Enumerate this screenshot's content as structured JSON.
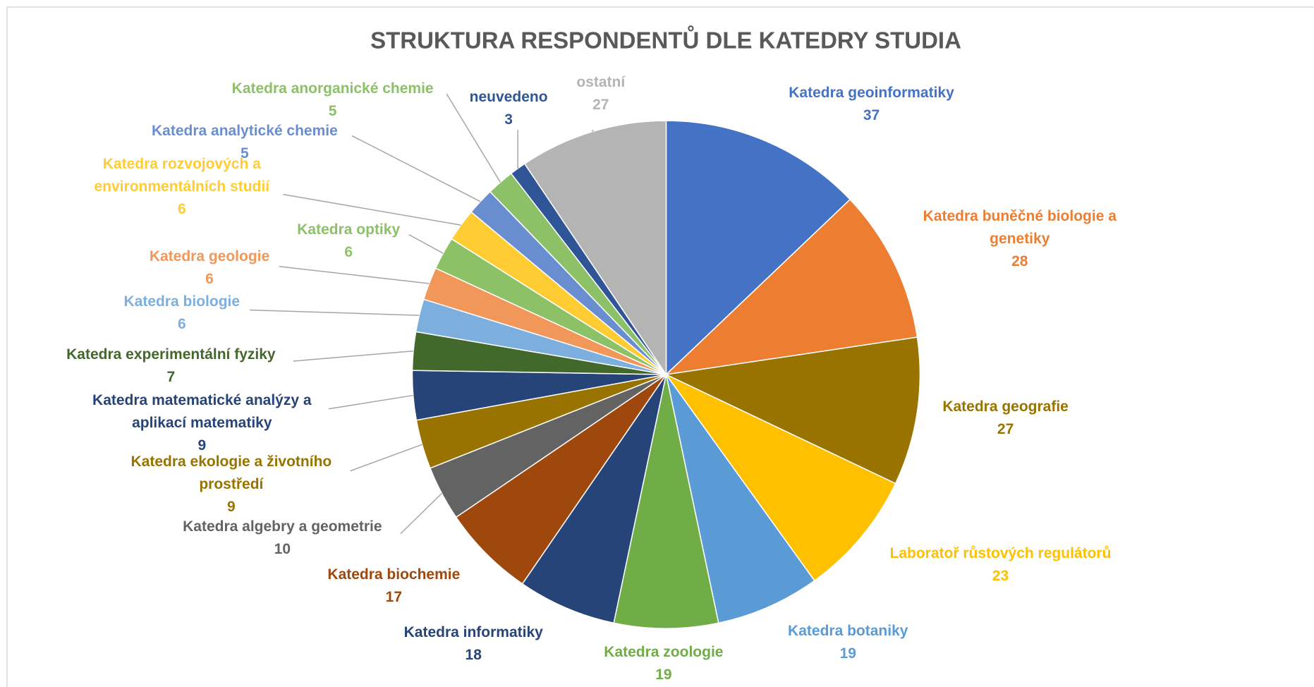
{
  "chart_data": {
    "type": "pie",
    "title": "STRUKTURA RESPONDENTŮ DLE KATEDRY STUDIA",
    "categories": [
      "Katedra geoinformatiky",
      "Katedra buněčné biologie a genetiky",
      "Katedra geografie",
      "Laboratoř růstových regulátorů",
      "Katedra botaniky",
      "Katedra zoologie",
      "Katedra informatiky",
      "Katedra biochemie",
      "Katedra algebry a geometrie",
      "Katedra ekologie a životního prostředí",
      "Katedra matematické analýzy a aplikací matematiky",
      "Katedra experimentální fyziky",
      "Katedra biologie",
      "Katedra geologie",
      "Katedra optiky",
      "Katedra rozvojových a environmentálních studií",
      "Katedra analytické chemie",
      "Katedra anorganické chemie",
      "neuvedeno",
      "ostatní"
    ],
    "values": [
      37,
      28,
      27,
      23,
      19,
      19,
      18,
      17,
      10,
      9,
      9,
      7,
      6,
      6,
      6,
      6,
      5,
      5,
      3,
      27
    ],
    "colors": [
      "#4472c4",
      "#ed7d31",
      "#997300",
      "#ffc000",
      "#5b9bd5",
      "#70ad47",
      "#264478",
      "#9e480e",
      "#636363",
      "#997300",
      "#264478",
      "#43682b",
      "#7cafdd",
      "#f1975a",
      "#8cc168",
      "#ffcd33",
      "#698ed0",
      "#8cc168",
      "#2f5597",
      "#b4b4b4"
    ]
  }
}
